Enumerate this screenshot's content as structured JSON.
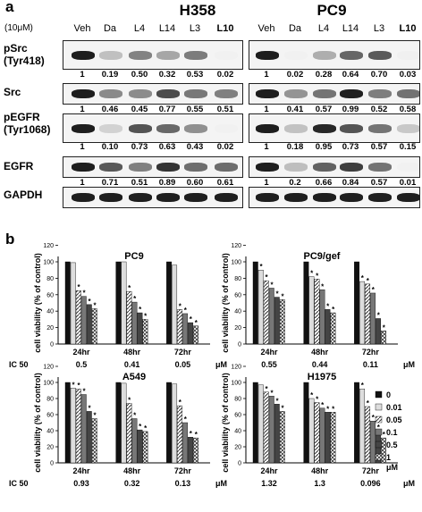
{
  "panel_a": {
    "letter": "a",
    "concentration": "(10μM)",
    "cell_lines": [
      "H358",
      "PC9"
    ],
    "lanes": [
      "Veh",
      "Da",
      "L4",
      "L14",
      "L3",
      "L10"
    ],
    "rows": [
      {
        "label1": "pSrc",
        "label2": "(Tyr418)",
        "h358": [
          "1",
          "0.19",
          "0.50",
          "0.32",
          "0.53",
          "0.02"
        ],
        "pc9": [
          "1",
          "0.02",
          "0.28",
          "0.64",
          "0.70",
          "0.03"
        ]
      },
      {
        "label1": "Src",
        "label2": "",
        "h358": [
          "1",
          "0.46",
          "0.45",
          "0.77",
          "0.55",
          "0.51"
        ],
        "pc9": [
          "1",
          "0.41",
          "0.57",
          "0.99",
          "0.52",
          "0.58"
        ]
      },
      {
        "label1": "pEGFR",
        "label2": "(Tyr1068)",
        "h358": [
          "1",
          "0.10",
          "0.73",
          "0.63",
          "0.43",
          "0.02"
        ],
        "pc9": [
          "1",
          "0.18",
          "0.95",
          "0.73",
          "0.57",
          "0.15"
        ]
      },
      {
        "label1": "EGFR",
        "label2": "",
        "h358": [
          "1",
          "0.71",
          "0.51",
          "0.89",
          "0.60",
          "0.61"
        ],
        "pc9": [
          "1",
          "0.2",
          "0.66",
          "0.84",
          "0.57",
          "0.01"
        ]
      },
      {
        "label1": "GAPDH",
        "label2": "",
        "h358": [],
        "pc9": []
      }
    ]
  },
  "panel_b": {
    "letter": "b",
    "ylabel": "cell viability (% of control)",
    "times": [
      "24hr",
      "48hr",
      "72hr"
    ],
    "ic50_label": "IC 50",
    "unit": "μM",
    "legend": [
      "0",
      "0.01",
      "0.05",
      "0.1",
      "0.5",
      "1"
    ],
    "legend_unit": "μM",
    "charts": [
      {
        "title": "PC9",
        "ic50": [
          "0.5",
          "0.41",
          "0.05"
        ],
        "values": [
          [
            100,
            99,
            65,
            58,
            48,
            43
          ],
          [
            100,
            100,
            64,
            51,
            38,
            30
          ],
          [
            100,
            96,
            42,
            37,
            26,
            22
          ]
        ]
      },
      {
        "title": "PC9/gef",
        "ic50": [
          "0.55",
          "0.44",
          "0.11"
        ],
        "values": [
          [
            100,
            90,
            77,
            68,
            57,
            54
          ],
          [
            100,
            82,
            79,
            66,
            42,
            38
          ],
          [
            100,
            76,
            73,
            62,
            31,
            16
          ]
        ]
      },
      {
        "title": "A549",
        "ic50": [
          "0.93",
          "0.32",
          "0.13"
        ],
        "values": [
          [
            100,
            93,
            92,
            85,
            64,
            55
          ],
          [
            100,
            99,
            74,
            55,
            41,
            39
          ],
          [
            100,
            98,
            71,
            50,
            32,
            31
          ]
        ]
      },
      {
        "title": "H1975",
        "ic50": [
          "1.32",
          "1.3",
          "0.096"
        ],
        "values": [
          [
            100,
            97,
            88,
            83,
            73,
            64
          ],
          [
            100,
            80,
            75,
            68,
            63,
            63
          ],
          [
            100,
            92,
            70,
            52,
            40,
            31
          ]
        ]
      }
    ]
  }
}
